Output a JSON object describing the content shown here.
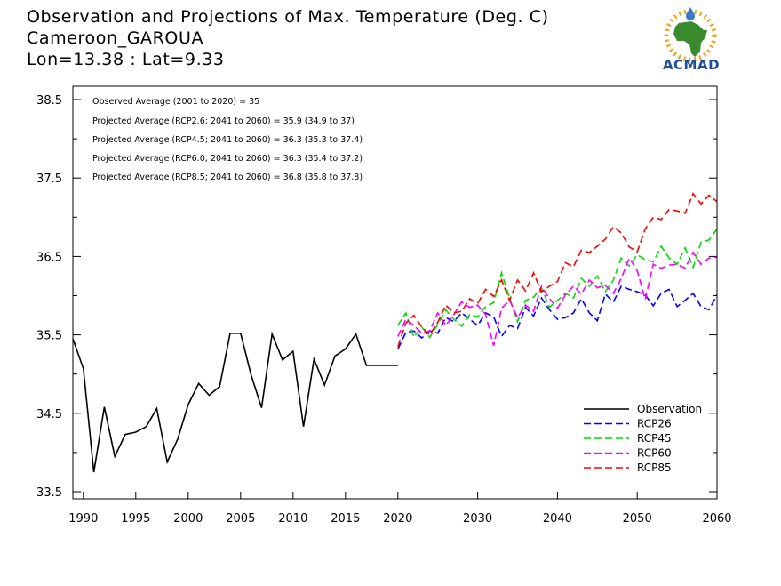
{
  "header": {
    "line1": "Observation and Projections of Max. Temperature (Deg. C)",
    "line2": "Cameroon_GAROUA",
    "line3": "Lon=13.38 : Lat=9.33"
  },
  "logo": {
    "text": "ACMAD",
    "colors": {
      "africa": "#3a8a2e",
      "drop": "#3a78c8",
      "rays": "#f0a020",
      "text": "#1f4e9a"
    }
  },
  "annotations": [
    "Observed Average (2001 to 2020) = 35",
    "Projected Average (RCP2.6; 2041 to 2060) = 35.9 (34.9 to 37)",
    "Projected Average (RCP4.5; 2041 to 2060) = 36.3 (35.3 to 37.4)",
    "Projected Average (RCP6.0; 2041 to 2060) = 36.3 (35.4 to 37.2)",
    "Projected Average (RCP8.5; 2041 to 2060) = 36.8 (35.8 to 37.8)"
  ],
  "chart_data": {
    "type": "line",
    "title": "Observation and Projections of Max. Temperature (Deg. C)",
    "ylim": [
      33.4,
      38.7
    ],
    "yticks": [
      "33.5",
      "34.5",
      "35.5",
      "36.5",
      "37.5",
      "38.5"
    ],
    "ytick_values": [
      33.5,
      34.5,
      35.5,
      36.5,
      37.5,
      38.5
    ],
    "xtick_labels": [
      "1990",
      "1995",
      "2000",
      "2005",
      "2010",
      "2015",
      "2020",
      "2030",
      "2040",
      "2050",
      "2060"
    ],
    "xtick_values": [
      1990,
      1995,
      2000,
      2005,
      2010,
      2015,
      2020,
      2030,
      2040,
      2050,
      2060
    ],
    "x_axis_note": "piecewise: 1989-2020 compressed segment, 2020-2060 segment",
    "legend_position": "bottom-right",
    "series": [
      {
        "name": "Observation",
        "color": "#000000",
        "dash": "solid",
        "x": [
          1989,
          1990,
          1991,
          1992,
          1993,
          1994,
          1995,
          1996,
          1997,
          1998,
          1999,
          2000,
          2001,
          2002,
          2003,
          2004,
          2005,
          2006,
          2007,
          2008,
          2009,
          2010,
          2011,
          2012,
          2013,
          2014,
          2015,
          2016,
          2017,
          2018,
          2019,
          2020
        ],
        "y": [
          35.45,
          35.07,
          33.75,
          34.58,
          33.95,
          34.23,
          34.26,
          34.33,
          34.56,
          33.88,
          34.17,
          34.61,
          34.88,
          34.73,
          34.84,
          35.52,
          35.52,
          34.99,
          34.57,
          35.51,
          35.18,
          35.29,
          34.33,
          35.19,
          34.86,
          35.23,
          35.32,
          35.51,
          35.11,
          35.11,
          35.11,
          35.11
        ]
      },
      {
        "name": "RCP26",
        "color": "#0000ff",
        "dash": "dashed",
        "x": [
          2020,
          2021,
          2022,
          2023,
          2024,
          2025,
          2026,
          2027,
          2028,
          2029,
          2030,
          2031,
          2032,
          2033,
          2034,
          2035,
          2036,
          2037,
          2038,
          2039,
          2040,
          2041,
          2042,
          2043,
          2044,
          2045,
          2046,
          2047,
          2048,
          2049,
          2050,
          2051,
          2052,
          2053,
          2054,
          2055,
          2056,
          2057,
          2058,
          2059,
          2060
        ],
        "y": [
          35.32,
          35.53,
          35.55,
          35.46,
          35.55,
          35.52,
          35.72,
          35.67,
          35.78,
          35.7,
          35.62,
          35.78,
          35.73,
          35.48,
          35.62,
          35.58,
          35.85,
          35.74,
          35.97,
          35.82,
          35.7,
          35.72,
          35.78,
          35.96,
          35.78,
          35.68,
          36.02,
          35.92,
          36.12,
          36.08,
          36.05,
          36.01,
          35.87,
          36.03,
          36.08,
          35.86,
          35.94,
          36.03,
          35.86,
          35.82,
          36.01
        ]
      },
      {
        "name": "RCP45",
        "color": "#00dd00",
        "dash": "dashed",
        "x": [
          2020,
          2021,
          2022,
          2023,
          2024,
          2025,
          2026,
          2027,
          2028,
          2029,
          2030,
          2031,
          2032,
          2033,
          2034,
          2035,
          2036,
          2037,
          2038,
          2039,
          2040,
          2041,
          2042,
          2043,
          2044,
          2045,
          2046,
          2047,
          2048,
          2049,
          2050,
          2051,
          2052,
          2053,
          2054,
          2055,
          2056,
          2057,
          2058,
          2059,
          2060
        ],
        "y": [
          35.62,
          35.78,
          35.47,
          35.6,
          35.47,
          35.63,
          35.82,
          35.7,
          35.61,
          35.76,
          35.73,
          35.86,
          35.91,
          36.29,
          35.97,
          35.67,
          35.94,
          35.98,
          36.1,
          35.85,
          35.94,
          36.03,
          35.97,
          36.22,
          36.12,
          36.25,
          36.05,
          36.2,
          36.48,
          36.38,
          36.52,
          36.46,
          36.43,
          36.63,
          36.48,
          36.4,
          36.61,
          36.36,
          36.68,
          36.71,
          36.85
        ]
      },
      {
        "name": "RCP60",
        "color": "#ff00ff",
        "dash": "dashed",
        "x": [
          2020,
          2021,
          2022,
          2023,
          2024,
          2025,
          2026,
          2027,
          2028,
          2029,
          2030,
          2031,
          2032,
          2033,
          2034,
          2035,
          2036,
          2037,
          2038,
          2039,
          2040,
          2041,
          2042,
          2043,
          2044,
          2045,
          2046,
          2047,
          2048,
          2049,
          2050,
          2051,
          2052,
          2053,
          2054,
          2055,
          2056,
          2057,
          2058,
          2059,
          2060
        ],
        "y": [
          35.48,
          35.7,
          35.62,
          35.52,
          35.55,
          35.78,
          35.62,
          35.76,
          35.92,
          35.85,
          35.88,
          35.76,
          35.36,
          35.84,
          35.94,
          35.72,
          35.88,
          35.8,
          36.12,
          35.96,
          35.84,
          36.01,
          36.12,
          36.02,
          36.2,
          36.1,
          36.13,
          36.03,
          36.22,
          36.48,
          36.32,
          35.95,
          36.4,
          36.35,
          36.39,
          36.4,
          36.35,
          36.55,
          36.4,
          36.48,
          36.49
        ]
      },
      {
        "name": "RCP85",
        "color": "#ff0000",
        "dash": "dashed",
        "x": [
          2020,
          2021,
          2022,
          2023,
          2024,
          2025,
          2026,
          2027,
          2028,
          2029,
          2030,
          2031,
          2032,
          2033,
          2034,
          2035,
          2036,
          2037,
          2038,
          2039,
          2040,
          2041,
          2042,
          2043,
          2044,
          2045,
          2046,
          2047,
          2048,
          2049,
          2050,
          2051,
          2052,
          2053,
          2054,
          2055,
          2056,
          2057,
          2058,
          2059,
          2060
        ],
        "y": [
          35.35,
          35.65,
          35.75,
          35.6,
          35.5,
          35.66,
          35.88,
          35.78,
          35.8,
          35.96,
          35.9,
          36.08,
          35.99,
          36.2,
          35.94,
          36.2,
          36.06,
          36.29,
          36.05,
          36.12,
          36.18,
          36.42,
          36.37,
          36.58,
          36.55,
          36.63,
          36.72,
          36.88,
          36.8,
          36.62,
          36.56,
          36.85,
          37.0,
          36.97,
          37.1,
          37.08,
          37.05,
          37.3,
          37.17,
          37.28,
          37.2
        ]
      }
    ]
  }
}
